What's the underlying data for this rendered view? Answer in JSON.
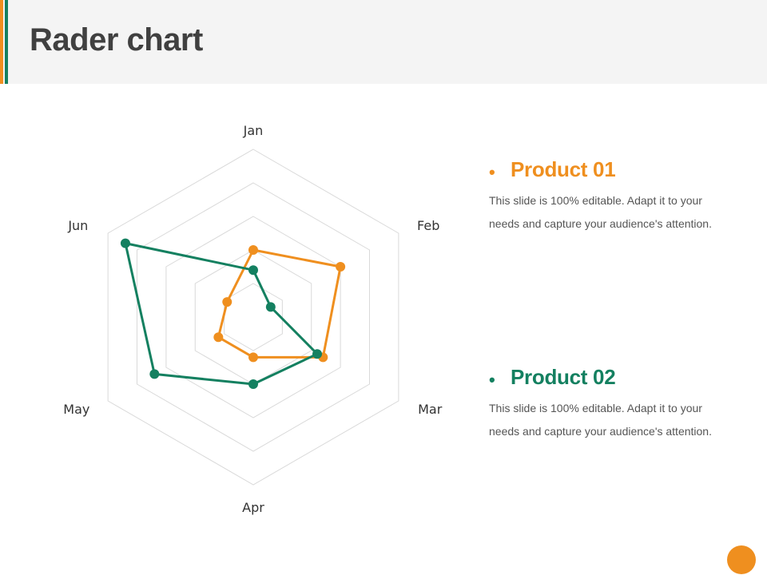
{
  "title": "Rader chart",
  "colors": {
    "product01": "#ef8f1f",
    "product02": "#148060",
    "grid": "#d9d9d9"
  },
  "legend": [
    {
      "name": "Product 01",
      "color": "#ef8f1f",
      "description": "This slide is 100% editable. Adapt it to your needs and capture your audience's attention."
    },
    {
      "name": "Product 02",
      "color": "#148060",
      "description": "This slide is 100% editable. Adapt it to your needs and capture your audience's attention."
    }
  ],
  "chart_data": {
    "type": "radar",
    "categories": [
      "Jan",
      "Feb",
      "Mar",
      "Apr",
      "May",
      "Jun"
    ],
    "rlim": [
      0,
      5
    ],
    "grid": true,
    "series": [
      {
        "name": "Product 01",
        "color": "#ef8f1f",
        "values": [
          2,
          3,
          2.4,
          1.2,
          1.2,
          0.9
        ]
      },
      {
        "name": "Product 02",
        "color": "#148060",
        "values": [
          1.4,
          0.6,
          2.2,
          2.0,
          3.4,
          4.4
        ]
      }
    ]
  }
}
